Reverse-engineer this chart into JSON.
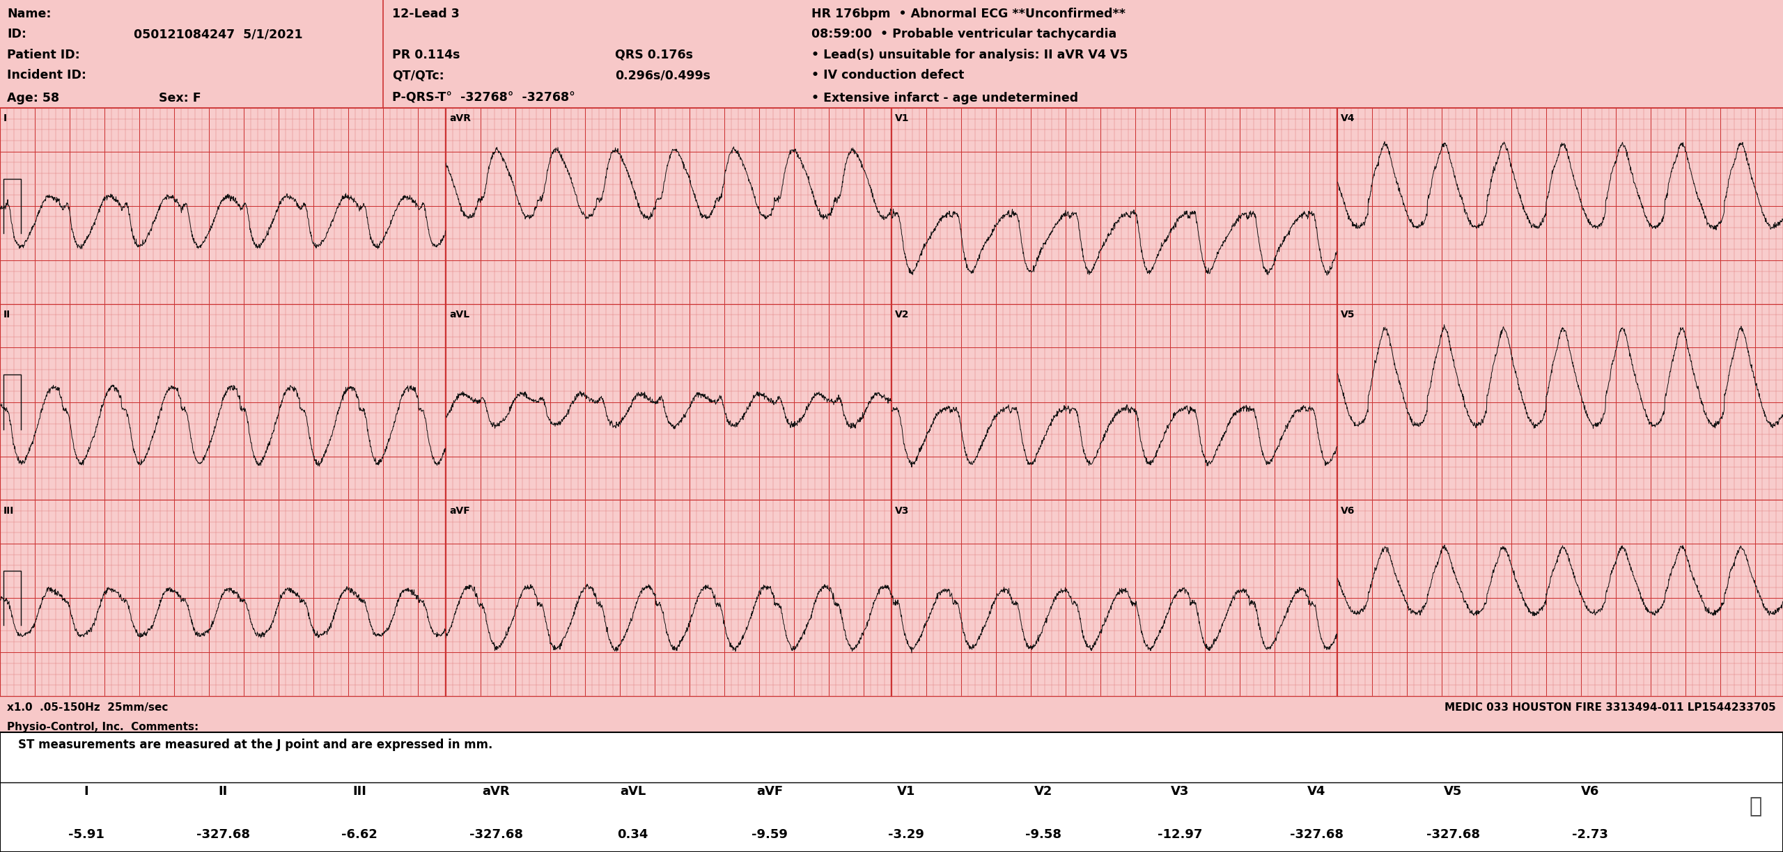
{
  "bg_color": "#f7c8c8",
  "grid_major_color": "#cc3333",
  "grid_minor_color": "#e89090",
  "ecg_color": "#111111",
  "header_bg": "#f7c8c8",
  "bottom_panel_bg": "#ffffff",
  "title_info": {
    "name_label": "Name:",
    "id_label": "ID:",
    "id_value": "050121084247",
    "date_value": "5/1/2021",
    "patient_id_label": "Patient ID:",
    "incident_id_label": "Incident ID:",
    "age_label": "Age: 58",
    "sex_label": "Sex: F",
    "col2_line1": "12-Lead 3",
    "pr_label": "PR 0.114s",
    "qrs_label": "QRS 0.176s",
    "qt_label": "QT/QTc:",
    "qt_value": "0.296s/0.499s",
    "pqrst_label": "P-QRS-T",
    "pqrst_value": "-32768°  -32768°",
    "pqrst_extra": "32768°",
    "hr_line": "HR 176bpm  • Abnormal ECG **Unconfirmed**",
    "time_line": "08:59:00  • Probable ventricular tachycardia",
    "qrs_line": "• Lead(s) unsuitable for analysis: II aVR V4 V5",
    "iv_line": "• IV conduction defect",
    "infarct_line": "• Extensive infarct - age undetermined"
  },
  "footer_left": "x1.0  .05-150Hz  25mm/sec",
  "footer_right": "MEDIC 033 HOUSTON FIRE 3313494-011 LP1544233705",
  "physio_control": "Physio-Control, Inc.  Comments:",
  "st_header": "ST measurements are measured at the J point and are expressed in mm.",
  "st_leads": [
    "I",
    "II",
    "III",
    "aVR",
    "aVL",
    "aVF",
    "V1",
    "V2",
    "V3",
    "V4",
    "V5",
    "V6"
  ],
  "st_values": [
    "-5.91",
    "-327.68",
    "-6.62",
    "-327.68",
    "0.34",
    "-9.59",
    "-3.29",
    "-9.58",
    "-12.97",
    "-327.68",
    "-327.68",
    "-2.73"
  ],
  "hr": 176,
  "paper_speed": 25,
  "sample_rate": 500,
  "lead_order": [
    [
      "I",
      "aVR",
      "V1",
      "V4"
    ],
    [
      "II",
      "aVL",
      "V2",
      "V5"
    ],
    [
      "III",
      "aVF",
      "V3",
      "V6"
    ]
  ]
}
